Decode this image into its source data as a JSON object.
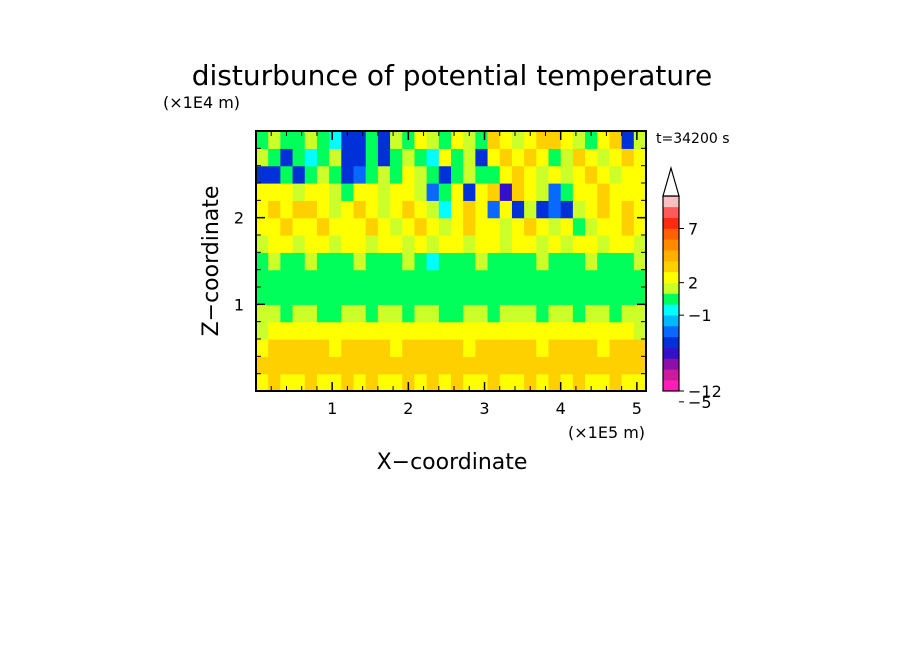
{
  "chart_data": {
    "type": "heatmap",
    "title": "disturbunce of potential temperature",
    "xlabel": "X−coordinate",
    "ylabel": "Z−coordinate",
    "x_unit": "(×1E5 m)",
    "y_unit": "(×1E4 m)",
    "time_label": "t=34200 s",
    "xlim": [
      0,
      5.12
    ],
    "ylim": [
      0,
      3.0
    ],
    "x_ticks": [
      1,
      2,
      3,
      4,
      5
    ],
    "x_tick_labels": [
      "1",
      "2",
      "3",
      "4",
      "5"
    ],
    "y_ticks": [
      1,
      2
    ],
    "y_tick_labels": [
      "1",
      "2"
    ],
    "z_cols": [
      0.08,
      0.24,
      0.4,
      0.56,
      0.72,
      0.88,
      1.04,
      1.2,
      1.36,
      1.52,
      1.68,
      1.84,
      2.0,
      2.16,
      2.32,
      2.48,
      2.64,
      2.8,
      2.96,
      3.12,
      3.28,
      3.44,
      3.6,
      3.76,
      3.92,
      4.08,
      4.24,
      4.4,
      4.56,
      4.72,
      4.88,
      5.04
    ],
    "z_rows": [
      0.1,
      0.3,
      0.5,
      0.7,
      0.9,
      1.1,
      1.3,
      1.5,
      1.7,
      1.9,
      2.1,
      2.3,
      2.5,
      2.7,
      2.9
    ],
    "z_note": "approximate cell values read from the color field, rows bottom to top",
    "z": [
      [
        2.5,
        3,
        2.5,
        2.5,
        3,
        2.5,
        2.5,
        3,
        2.5,
        3,
        2.5,
        2.5,
        3,
        2.5,
        3,
        2.5,
        3,
        2.5,
        2.5,
        3,
        2.5,
        2.5,
        3,
        2.5,
        3,
        2.5,
        3,
        2.5,
        2.5,
        3,
        2.5,
        2.5
      ],
      [
        3,
        3.5,
        3.5,
        3,
        3.5,
        3.5,
        3,
        3.5,
        3.5,
        3,
        3.5,
        3,
        3.5,
        3.5,
        3,
        3.5,
        3,
        3.5,
        3,
        3.5,
        3,
        3,
        3.5,
        3.5,
        3,
        3.5,
        3.5,
        3,
        3.5,
        3.5,
        3,
        3
      ],
      [
        2.5,
        3,
        3.5,
        3.5,
        3,
        3,
        2.5,
        3,
        3.5,
        3,
        3,
        2.5,
        3,
        3.5,
        3.5,
        3,
        3,
        2.5,
        3,
        3,
        3.5,
        3,
        3,
        2.5,
        3,
        3.5,
        3,
        3,
        2.5,
        3,
        3.5,
        3
      ],
      [
        1.5,
        2.5,
        2.5,
        2,
        2.5,
        2.5,
        2,
        2.5,
        2.5,
        2,
        2.5,
        2.5,
        2,
        2.5,
        2.5,
        2,
        2.5,
        2.5,
        2,
        2.5,
        2.5,
        2,
        2.5,
        2.5,
        2,
        2.5,
        2.5,
        2,
        2.5,
        2.5,
        2,
        1.5
      ],
      [
        1.5,
        1.5,
        0.5,
        1.5,
        1.5,
        0.5,
        0.5,
        1.5,
        1.5,
        0.5,
        1.5,
        1.5,
        0.5,
        1.5,
        1.5,
        0.5,
        0.5,
        1.5,
        1.5,
        0.5,
        1.5,
        1.5,
        1.5,
        0.5,
        1.5,
        1.5,
        0.5,
        1.5,
        1.5,
        0.5,
        1.5,
        1.5
      ],
      [
        0.5,
        0.5,
        0.5,
        0.5,
        0.5,
        0.5,
        0.5,
        0.5,
        0.5,
        0.5,
        0.5,
        0.5,
        0.5,
        0.5,
        0.5,
        0.5,
        0.5,
        0.5,
        0.5,
        0.5,
        0.5,
        0.5,
        0.5,
        0.5,
        0.5,
        0.5,
        0.5,
        0.5,
        0.5,
        0.5,
        0.5,
        0.5
      ],
      [
        0.5,
        0.5,
        0.5,
        0.5,
        0.5,
        0.5,
        0.5,
        0.5,
        0.5,
        0.5,
        0.5,
        0.5,
        0.5,
        0.5,
        0.5,
        0.5,
        0.5,
        0.5,
        0.5,
        0.5,
        0.5,
        0.5,
        0.5,
        0.5,
        0.5,
        0.5,
        0.5,
        0.5,
        0.5,
        0.5,
        0.5,
        0.5
      ],
      [
        0.5,
        1.5,
        0.5,
        0.5,
        1.5,
        0.5,
        0.5,
        0.5,
        1.5,
        0.5,
        0.5,
        0.5,
        1.5,
        0.5,
        -0.5,
        0.5,
        0.5,
        0.5,
        1.5,
        0.5,
        0.5,
        0.5,
        0.5,
        1.5,
        0.5,
        0.5,
        0.5,
        1.5,
        0.5,
        0.5,
        0.5,
        1.5
      ],
      [
        1.5,
        2.5,
        2,
        1.5,
        2.5,
        2.5,
        1.5,
        2,
        2.5,
        1.5,
        2.5,
        2,
        1.5,
        2.5,
        1.5,
        2.5,
        2,
        1.5,
        2.5,
        2,
        1.5,
        2.5,
        2,
        1.5,
        2.5,
        1.5,
        2,
        2.5,
        1.5,
        2.5,
        2,
        1.5
      ],
      [
        2.5,
        2.5,
        3.5,
        2.5,
        2.5,
        3.5,
        2.5,
        2,
        2.5,
        3.5,
        2.5,
        1.5,
        2.5,
        3.5,
        2.5,
        1.5,
        2.5,
        3.5,
        2.5,
        2.5,
        1.5,
        2.5,
        3,
        2,
        1.5,
        2.5,
        0.5,
        1.5,
        2.5,
        2.5,
        3.5,
        2.5
      ],
      [
        2.5,
        3.5,
        2.5,
        3,
        3.5,
        2.5,
        1.5,
        2.5,
        3.5,
        2.5,
        1.5,
        2.5,
        3.5,
        2.5,
        1.5,
        -0.5,
        2.5,
        3.5,
        2.5,
        -2.5,
        2.5,
        -3.5,
        1.5,
        -3.5,
        -2.5,
        -3.5,
        1.5,
        2.5,
        3.5,
        2.5,
        3,
        2.5
      ],
      [
        2.5,
        2,
        2.5,
        1.5,
        2.5,
        2.5,
        1.5,
        0.5,
        2.5,
        2.5,
        1.5,
        2.5,
        2,
        1.5,
        -2.5,
        0.5,
        2.5,
        -3.5,
        2.5,
        3.5,
        -5,
        3,
        2.5,
        1.5,
        -2.5,
        0.5,
        2.5,
        2.5,
        3,
        2.5,
        2.5,
        2.5
      ],
      [
        -3.5,
        -3.5,
        0.5,
        -3.5,
        0.5,
        1.5,
        0.5,
        -3.5,
        -2.5,
        0.5,
        1.5,
        0.5,
        2.5,
        1.5,
        0.5,
        -3.5,
        0.5,
        1.5,
        0.5,
        0.5,
        2.5,
        3.5,
        2.5,
        1.5,
        2.5,
        1.5,
        2.5,
        3.5,
        2.5,
        1.5,
        2.5,
        2.5
      ],
      [
        1.5,
        0.5,
        -3.5,
        0.5,
        -0.5,
        0.5,
        1.5,
        -3.5,
        -3.5,
        0.5,
        -3.5,
        0.5,
        1.5,
        0.5,
        -0.5,
        2.5,
        0.5,
        1.5,
        -3.5,
        2.5,
        3.5,
        2.5,
        3.5,
        2.5,
        0.5,
        1.5,
        3.5,
        2.5,
        1.5,
        2.5,
        3.5,
        2.5
      ],
      [
        0.5,
        1.5,
        0.5,
        0.5,
        1.5,
        0.5,
        -0.5,
        -3.5,
        -3.5,
        0.5,
        -3.5,
        1.5,
        0.5,
        2.5,
        1.5,
        0.5,
        2.5,
        1.5,
        0.5,
        3.5,
        2.5,
        1.5,
        2.5,
        3.5,
        3.5,
        2.5,
        1.5,
        0.5,
        2.5,
        3.5,
        -3.5,
        1.5
      ]
    ],
    "colorbar": {
      "ticks": [
        7,
        2,
        -1,
        -5,
        -12
      ],
      "tick_labels": [
        "7",
        "2",
        "−1",
        "−5",
        "−12"
      ],
      "levels": [
        -12,
        -10,
        -8,
        -6,
        -4,
        -3,
        -2,
        -1,
        0,
        1,
        2,
        3,
        4,
        5,
        6,
        7,
        8,
        10,
        12
      ],
      "colors": [
        "#ff1fb4",
        "#cc1a9c",
        "#8c10a8",
        "#3410c8",
        "#0030d8",
        "#0868ff",
        "#00b8ff",
        "#00ffff",
        "#00ff5a",
        "#ccff2a",
        "#ffff00",
        "#ffd000",
        "#ffb000",
        "#ff8a00",
        "#ff6000",
        "#ff2a10",
        "#ff5a5a",
        "#f8c0c0"
      ],
      "extend_top": true
    }
  }
}
